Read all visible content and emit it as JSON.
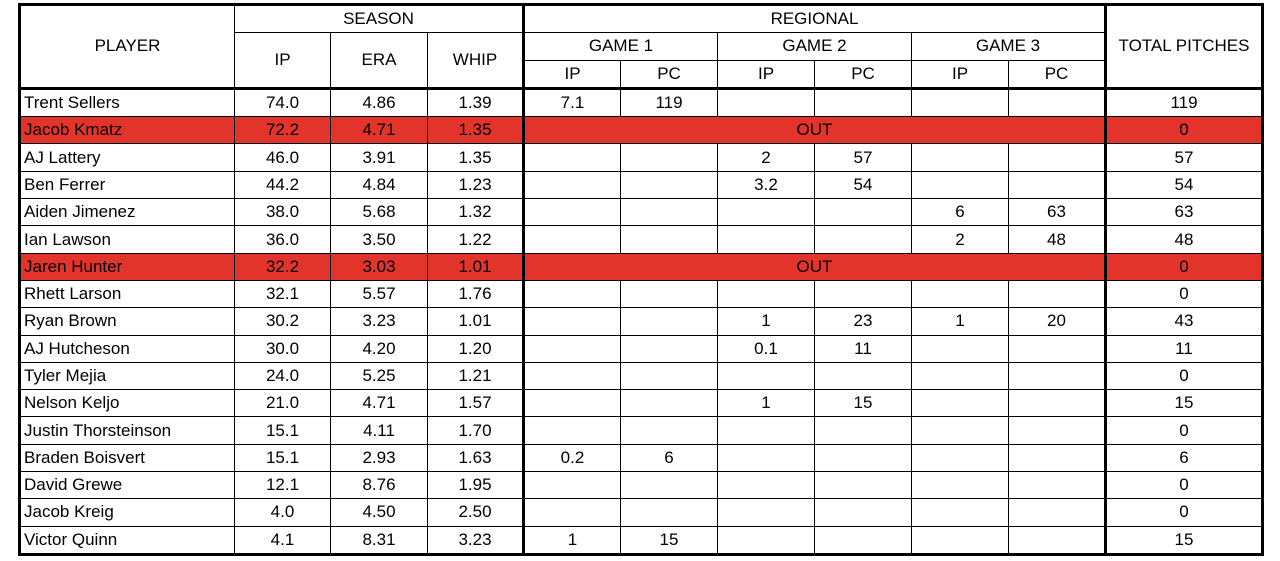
{
  "headers": {
    "player": "PLAYER",
    "season": "SEASON",
    "regional": "REGIONAL",
    "total": "TOTAL PITCHES",
    "ip": "IP",
    "era": "ERA",
    "whip": "WHIP",
    "game1": "GAME 1",
    "game2": "GAME 2",
    "game3": "GAME 3",
    "pc": "PC"
  },
  "out_label": "OUT",
  "highlight_color": "#e3342b",
  "rows": [
    {
      "name": "Trent Sellers",
      "ip": "74.0",
      "era": "4.86",
      "whip": "1.39",
      "g1ip": "7.1",
      "g1pc": "119",
      "g2ip": "",
      "g2pc": "",
      "g3ip": "",
      "g3pc": "",
      "total": "119",
      "out": false
    },
    {
      "name": "Jacob Kmatz",
      "ip": "72.2",
      "era": "4.71",
      "whip": "1.35",
      "g1ip": "",
      "g1pc": "",
      "g2ip": "",
      "g2pc": "",
      "g3ip": "",
      "g3pc": "",
      "total": "0",
      "out": true
    },
    {
      "name": "AJ Lattery",
      "ip": "46.0",
      "era": "3.91",
      "whip": "1.35",
      "g1ip": "",
      "g1pc": "",
      "g2ip": "2",
      "g2pc": "57",
      "g3ip": "",
      "g3pc": "",
      "total": "57",
      "out": false
    },
    {
      "name": "Ben Ferrer",
      "ip": "44.2",
      "era": "4.84",
      "whip": "1.23",
      "g1ip": "",
      "g1pc": "",
      "g2ip": "3.2",
      "g2pc": "54",
      "g3ip": "",
      "g3pc": "",
      "total": "54",
      "out": false
    },
    {
      "name": "Aiden Jimenez",
      "ip": "38.0",
      "era": "5.68",
      "whip": "1.32",
      "g1ip": "",
      "g1pc": "",
      "g2ip": "",
      "g2pc": "",
      "g3ip": "6",
      "g3pc": "63",
      "total": "63",
      "out": false
    },
    {
      "name": "Ian Lawson",
      "ip": "36.0",
      "era": "3.50",
      "whip": "1.22",
      "g1ip": "",
      "g1pc": "",
      "g2ip": "",
      "g2pc": "",
      "g3ip": "2",
      "g3pc": "48",
      "total": "48",
      "out": false
    },
    {
      "name": "Jaren Hunter",
      "ip": "32.2",
      "era": "3.03",
      "whip": "1.01",
      "g1ip": "",
      "g1pc": "",
      "g2ip": "",
      "g2pc": "",
      "g3ip": "",
      "g3pc": "",
      "total": "0",
      "out": true
    },
    {
      "name": "Rhett Larson",
      "ip": "32.1",
      "era": "5.57",
      "whip": "1.76",
      "g1ip": "",
      "g1pc": "",
      "g2ip": "",
      "g2pc": "",
      "g3ip": "",
      "g3pc": "",
      "total": "0",
      "out": false
    },
    {
      "name": "Ryan Brown",
      "ip": "30.2",
      "era": "3.23",
      "whip": "1.01",
      "g1ip": "",
      "g1pc": "",
      "g2ip": "1",
      "g2pc": "23",
      "g3ip": "1",
      "g3pc": "20",
      "total": "43",
      "out": false
    },
    {
      "name": "AJ Hutcheson",
      "ip": "30.0",
      "era": "4.20",
      "whip": "1.20",
      "g1ip": "",
      "g1pc": "",
      "g2ip": "0.1",
      "g2pc": "11",
      "g3ip": "",
      "g3pc": "",
      "total": "11",
      "out": false
    },
    {
      "name": "Tyler Mejia",
      "ip": "24.0",
      "era": "5.25",
      "whip": "1.21",
      "g1ip": "",
      "g1pc": "",
      "g2ip": "",
      "g2pc": "",
      "g3ip": "",
      "g3pc": "",
      "total": "0",
      "out": false
    },
    {
      "name": "Nelson Keljo",
      "ip": "21.0",
      "era": "4.71",
      "whip": "1.57",
      "g1ip": "",
      "g1pc": "",
      "g2ip": "1",
      "g2pc": "15",
      "g3ip": "",
      "g3pc": "",
      "total": "15",
      "out": false
    },
    {
      "name": "Justin Thorsteinson",
      "ip": "15.1",
      "era": "4.11",
      "whip": "1.70",
      "g1ip": "",
      "g1pc": "",
      "g2ip": "",
      "g2pc": "",
      "g3ip": "",
      "g3pc": "",
      "total": "0",
      "out": false
    },
    {
      "name": "Braden Boisvert",
      "ip": "15.1",
      "era": "2.93",
      "whip": "1.63",
      "g1ip": "0.2",
      "g1pc": "6",
      "g2ip": "",
      "g2pc": "",
      "g3ip": "",
      "g3pc": "",
      "total": "6",
      "out": false
    },
    {
      "name": "David Grewe",
      "ip": "12.1",
      "era": "8.76",
      "whip": "1.95",
      "g1ip": "",
      "g1pc": "",
      "g2ip": "",
      "g2pc": "",
      "g3ip": "",
      "g3pc": "",
      "total": "0",
      "out": false
    },
    {
      "name": "Jacob Kreig",
      "ip": "4.0",
      "era": "4.50",
      "whip": "2.50",
      "g1ip": "",
      "g1pc": "",
      "g2ip": "",
      "g2pc": "",
      "g3ip": "",
      "g3pc": "",
      "total": "0",
      "out": false
    },
    {
      "name": "Victor Quinn",
      "ip": "4.1",
      "era": "8.31",
      "whip": "3.23",
      "g1ip": "1",
      "g1pc": "15",
      "g2ip": "",
      "g2pc": "",
      "g3ip": "",
      "g3pc": "",
      "total": "15",
      "out": false
    }
  ]
}
